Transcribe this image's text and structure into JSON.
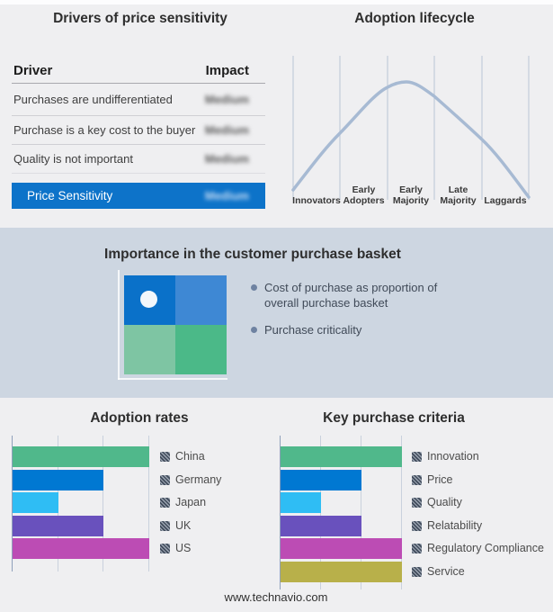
{
  "page": {
    "footer": "www.technavio.com"
  },
  "drivers_table": {
    "title": "Drivers of price sensitivity",
    "headers": {
      "driver": "Driver",
      "impact": "Impact"
    },
    "rows": [
      {
        "driver": "Purchases are undifferentiated",
        "impact": "Medium",
        "impact_obscured": true
      },
      {
        "driver": "Purchase is a key cost to the buyer",
        "impact": "Medium",
        "impact_obscured": true
      },
      {
        "driver": "Quality is not important",
        "impact": "Medium",
        "impact_obscured": true
      }
    ],
    "highlight_row": {
      "driver": "Price Sensitivity",
      "impact": "Medium",
      "impact_obscured": true,
      "background": "#0d73c9"
    }
  },
  "adoption_lifecycle": {
    "title": "Adoption lifecycle",
    "stages": [
      "Innovators",
      "Early Adopters",
      "Early Majority",
      "Late Majority",
      "Laggards"
    ],
    "curve_color": "#a7bad3"
  },
  "purchase_basket": {
    "title": "Importance in the customer purchase basket",
    "bullets": [
      "Cost of purchase as proportion of overall purchase basket",
      "Purchase criticality"
    ],
    "quadrant_colors": {
      "tl": "#0a71c9",
      "tr": "#3e88d4",
      "bl": "#7ec5a3",
      "br": "#4bb988"
    },
    "band_color": "#cdd6e1"
  },
  "chart_data": [
    {
      "type": "bar",
      "orientation": "horizontal",
      "title": "Adoption rates",
      "categories": [
        "China",
        "Germany",
        "Japan",
        "UK",
        "US"
      ],
      "values": [
        3,
        2,
        1,
        2,
        3
      ],
      "xlim": [
        0,
        3
      ],
      "grid": true,
      "legend_position": "right",
      "colors": [
        "#50b88b",
        "#0078d2",
        "#2fbdf4",
        "#6951bd",
        "#bc4cb4"
      ]
    },
    {
      "type": "bar",
      "orientation": "horizontal",
      "title": "Key purchase criteria",
      "categories": [
        "Innovation",
        "Price",
        "Quality",
        "Relatability",
        "Regulatory Compliance",
        "Service"
      ],
      "values": [
        3,
        2,
        1,
        2,
        3,
        3
      ],
      "xlim": [
        0,
        3
      ],
      "grid": true,
      "legend_position": "right",
      "colors": [
        "#50b88b",
        "#0078d2",
        "#2fbdf4",
        "#6951bd",
        "#bc4cb4",
        "#b8b04a"
      ]
    }
  ]
}
